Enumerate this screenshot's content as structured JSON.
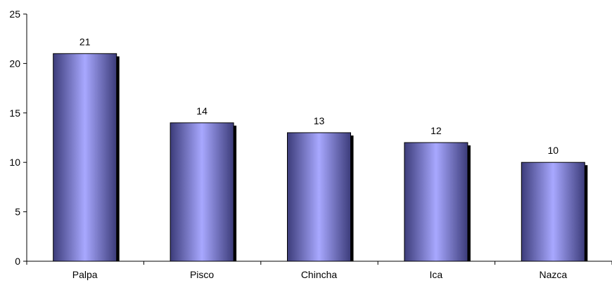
{
  "chart_data": {
    "type": "bar",
    "categories": [
      "Palpa",
      "Pisco",
      "Chincha",
      "Ica",
      "Nazca"
    ],
    "values": [
      21,
      14,
      13,
      12,
      10
    ],
    "data_labels": [
      "21",
      "14",
      "13",
      "12",
      "10"
    ],
    "y_ticks": [
      0,
      5,
      10,
      15,
      20,
      25
    ],
    "y_tick_labels": [
      "0",
      "5",
      "10",
      "15",
      "20",
      "25"
    ],
    "ylim": [
      0,
      25
    ],
    "grid": false,
    "legend": "none",
    "bar_color_edge": "#3c3c7a",
    "bar_color_center": "#a8a8ff",
    "bar_shadow_color": "#000000",
    "axis_color": "#000000"
  }
}
